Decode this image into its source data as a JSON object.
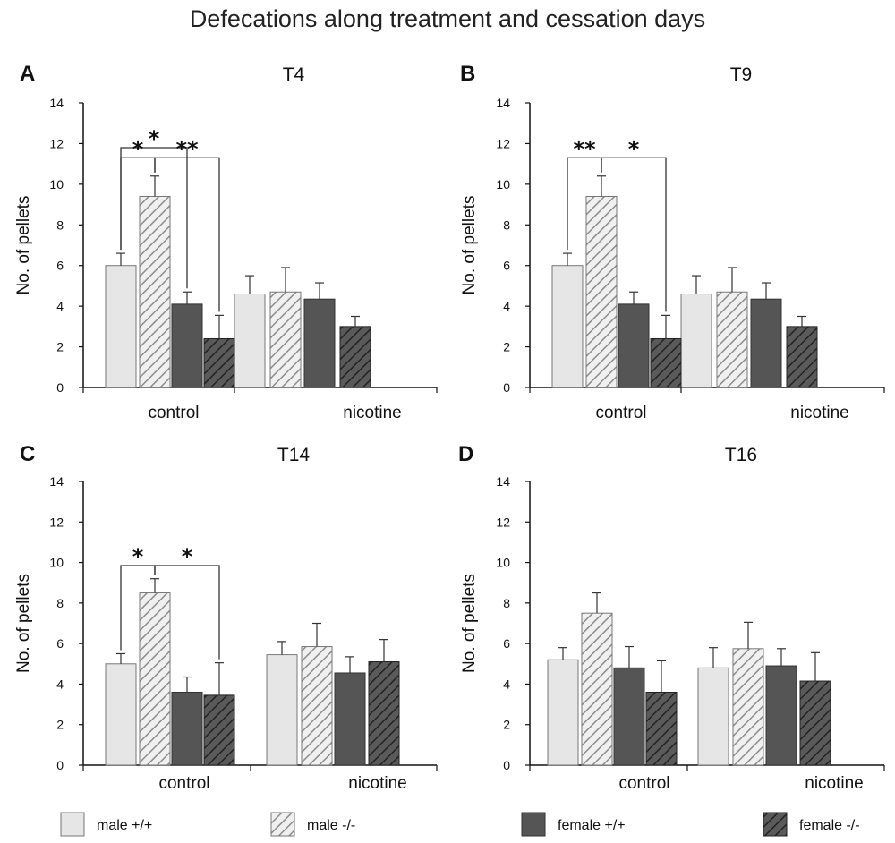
{
  "title": "Defecations along treatment and cessation days",
  "legend": [
    {
      "key": "male_wt",
      "label": "male +/+"
    },
    {
      "key": "male_ko",
      "label": "male -/-"
    },
    {
      "key": "female_wt",
      "label": "female +/+"
    },
    {
      "key": "female_ko",
      "label": "female -/-"
    }
  ],
  "colors": {
    "male_wt": "#e6e6e6",
    "male_ko": "#f0f0f0",
    "female_wt": "#555555",
    "female_ko": "#5a5a5a",
    "hatch_light": "#8c8c8c",
    "hatch_dark": "#222222",
    "axis": "#111111"
  },
  "chart_data": [
    {
      "type": "bar",
      "panel": "A",
      "title": "T4",
      "ylabel": "No. of pellets",
      "ylim": [
        0,
        14
      ],
      "yticks": [
        0,
        2,
        4,
        6,
        8,
        10,
        12,
        14
      ],
      "categories": [
        "control",
        "nicotine"
      ],
      "series": [
        {
          "name": "male +/+",
          "key": "male_wt",
          "values": [
            6.0,
            4.6
          ],
          "errors": [
            0.6,
            0.9
          ]
        },
        {
          "name": "male -/-",
          "key": "male_ko",
          "values": [
            9.4,
            4.7
          ],
          "errors": [
            1.0,
            1.2
          ]
        },
        {
          "name": "female +/+",
          "key": "female_wt",
          "values": [
            4.1,
            4.35
          ],
          "errors": [
            0.6,
            0.8
          ]
        },
        {
          "name": "female -/-",
          "key": "female_ko",
          "values": [
            2.4,
            3.0
          ],
          "errors": [
            1.15,
            0.5
          ]
        }
      ],
      "significance": [
        {
          "from": 0,
          "to": 2,
          "label": "*"
        },
        {
          "from": 0,
          "to": 1,
          "label": "*"
        },
        {
          "from": 1,
          "to": 3,
          "label": "**"
        }
      ]
    },
    {
      "type": "bar",
      "panel": "B",
      "title": "T9",
      "ylabel": "No. of pellets",
      "ylim": [
        0,
        14
      ],
      "yticks": [
        0,
        2,
        4,
        6,
        8,
        10,
        12,
        14
      ],
      "categories": [
        "control",
        "nicotine"
      ],
      "series": [
        {
          "name": "male +/+",
          "key": "male_wt",
          "values": [
            6.0,
            4.6
          ],
          "errors": [
            0.6,
            0.9
          ]
        },
        {
          "name": "male -/-",
          "key": "male_ko",
          "values": [
            9.4,
            4.7
          ],
          "errors": [
            1.0,
            1.2
          ]
        },
        {
          "name": "female +/+",
          "key": "female_wt",
          "values": [
            4.1,
            4.35
          ],
          "errors": [
            0.6,
            0.8
          ]
        },
        {
          "name": "female -/-",
          "key": "female_ko",
          "values": [
            2.4,
            3.0
          ],
          "errors": [
            1.15,
            0.5
          ]
        }
      ],
      "significance": [
        {
          "from": 0,
          "to": 1,
          "label": "**"
        },
        {
          "from": 1,
          "to": 3,
          "label": "*"
        }
      ]
    },
    {
      "type": "bar",
      "panel": "C",
      "title": "T14",
      "ylabel": "No. of pellets",
      "ylim": [
        0,
        14
      ],
      "yticks": [
        0,
        2,
        4,
        6,
        8,
        10,
        12,
        14
      ],
      "categories": [
        "control",
        "nicotine"
      ],
      "series": [
        {
          "name": "male +/+",
          "key": "male_wt",
          "values": [
            5.0,
            5.45
          ],
          "errors": [
            0.5,
            0.65
          ]
        },
        {
          "name": "male -/-",
          "key": "male_ko",
          "values": [
            8.5,
            5.85
          ],
          "errors": [
            0.7,
            1.15
          ]
        },
        {
          "name": "female +/+",
          "key": "female_wt",
          "values": [
            3.6,
            4.55
          ],
          "errors": [
            0.75,
            0.8
          ]
        },
        {
          "name": "female -/-",
          "key": "female_ko",
          "values": [
            3.45,
            5.1
          ],
          "errors": [
            1.6,
            1.1
          ]
        }
      ],
      "significance": [
        {
          "from": 0,
          "to": 1,
          "label": "*"
        },
        {
          "from": 1,
          "to": 3,
          "label": "*"
        }
      ]
    },
    {
      "type": "bar",
      "panel": "D",
      "title": "T16",
      "ylabel": "No. of pellets",
      "ylim": [
        0,
        14
      ],
      "yticks": [
        0,
        2,
        4,
        6,
        8,
        10,
        12,
        14
      ],
      "categories": [
        "control",
        "nicotine"
      ],
      "series": [
        {
          "name": "male +/+",
          "key": "male_wt",
          "values": [
            5.2,
            4.8
          ],
          "errors": [
            0.6,
            1.0
          ]
        },
        {
          "name": "male -/-",
          "key": "male_ko",
          "values": [
            7.5,
            5.75
          ],
          "errors": [
            1.0,
            1.3
          ]
        },
        {
          "name": "female +/+",
          "key": "female_wt",
          "values": [
            4.8,
            4.9
          ],
          "errors": [
            1.05,
            0.85
          ]
        },
        {
          "name": "female -/-",
          "key": "female_ko",
          "values": [
            3.6,
            4.15
          ],
          "errors": [
            1.55,
            1.4
          ]
        }
      ],
      "significance": []
    }
  ]
}
